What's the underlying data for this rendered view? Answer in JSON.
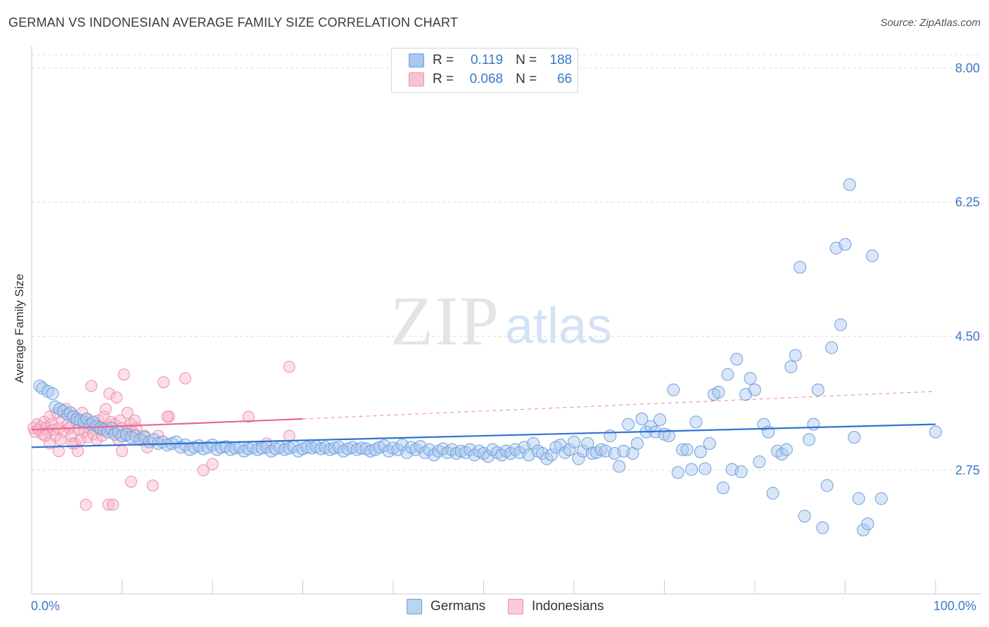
{
  "title": "GERMAN VS INDONESIAN AVERAGE FAMILY SIZE CORRELATION CHART",
  "source": "Source: ZipAtlas.com",
  "watermark": {
    "zip": "ZIP",
    "atlas": "atlas"
  },
  "legend": {
    "r_label": "R =",
    "n_label": "N =",
    "germans": {
      "r": "0.119",
      "n": "188"
    },
    "indonesians": {
      "r": "0.068",
      "n": "66"
    }
  },
  "bottom_legend": {
    "germans": "Germans",
    "indonesians": "Indonesians"
  },
  "colors": {
    "germans_fill": "#a9c8f0",
    "germans_stroke": "#6f9fdc",
    "germans_line": "#2e72d2",
    "indonesians_fill": "#f7b8cb",
    "indonesians_stroke": "#ec8fab",
    "indonesians_line": "#e8688f",
    "grid": "#dcdcdc",
    "axis_text": "#3b78c8"
  },
  "chart_data": {
    "type": "scatter",
    "title": "GERMAN VS INDONESIAN AVERAGE FAMILY SIZE CORRELATION CHART",
    "xlabel": "",
    "ylabel": "Average Family Size",
    "xlim": [
      0,
      100
    ],
    "ylim": [
      1.0,
      8.3
    ],
    "x_tick_labels": [
      "0.0%",
      "100.0%"
    ],
    "y_ticks": [
      2.75,
      4.5,
      6.25,
      8.0
    ],
    "y_tick_labels": [
      "2.75",
      "4.50",
      "6.25",
      "8.00"
    ],
    "grid": true,
    "legend_position": "top-center",
    "series": [
      {
        "name": "Germans",
        "r": 0.119,
        "n": 188,
        "trend": {
          "x0": 0,
          "y0": 3.05,
          "x1": 100,
          "y1": 3.35
        },
        "points": [
          [
            0.9,
            3.85
          ],
          [
            1.2,
            3.82
          ],
          [
            1.8,
            3.78
          ],
          [
            2.3,
            3.75
          ],
          [
            2.6,
            3.58
          ],
          [
            3.1,
            3.55
          ],
          [
            3.5,
            3.52
          ],
          [
            4.0,
            3.48
          ],
          [
            4.3,
            3.5
          ],
          [
            4.6,
            3.45
          ],
          [
            5.0,
            3.42
          ],
          [
            5.4,
            3.4
          ],
          [
            5.8,
            3.38
          ],
          [
            6.1,
            3.42
          ],
          [
            6.5,
            3.35
          ],
          [
            6.8,
            3.38
          ],
          [
            7.2,
            3.32
          ],
          [
            7.6,
            3.3
          ],
          [
            8.0,
            3.28
          ],
          [
            8.4,
            3.25
          ],
          [
            8.8,
            3.3
          ],
          [
            9.2,
            3.22
          ],
          [
            9.6,
            3.25
          ],
          [
            10.0,
            3.2
          ],
          [
            10.5,
            3.22
          ],
          [
            11.0,
            3.18
          ],
          [
            11.5,
            3.2
          ],
          [
            12.0,
            3.15
          ],
          [
            12.5,
            3.18
          ],
          [
            13.0,
            3.12
          ],
          [
            13.5,
            3.15
          ],
          [
            14.0,
            3.1
          ],
          [
            14.5,
            3.12
          ],
          [
            15.0,
            3.08
          ],
          [
            15.5,
            3.1
          ],
          [
            16.0,
            3.12
          ],
          [
            16.5,
            3.05
          ],
          [
            17.0,
            3.08
          ],
          [
            17.5,
            3.02
          ],
          [
            18.0,
            3.05
          ],
          [
            18.5,
            3.07
          ],
          [
            19.0,
            3.03
          ],
          [
            19.5,
            3.05
          ],
          [
            20.0,
            3.08
          ],
          [
            20.5,
            3.02
          ],
          [
            21.0,
            3.05
          ],
          [
            21.5,
            3.06
          ],
          [
            22.0,
            3.02
          ],
          [
            22.5,
            3.04
          ],
          [
            23.0,
            3.05
          ],
          [
            23.5,
            3.0
          ],
          [
            24.0,
            3.03
          ],
          [
            24.5,
            3.05
          ],
          [
            25.0,
            3.02
          ],
          [
            25.5,
            3.04
          ],
          [
            26.0,
            3.05
          ],
          [
            26.5,
            3.0
          ],
          [
            27.0,
            3.03
          ],
          [
            27.5,
            3.05
          ],
          [
            28.0,
            3.02
          ],
          [
            28.5,
            3.04
          ],
          [
            29.0,
            3.06
          ],
          [
            29.5,
            3.0
          ],
          [
            30.0,
            3.03
          ],
          [
            30.5,
            3.05
          ],
          [
            31.0,
            3.04
          ],
          [
            31.5,
            3.06
          ],
          [
            32.0,
            3.03
          ],
          [
            32.5,
            3.05
          ],
          [
            33.0,
            3.02
          ],
          [
            33.5,
            3.04
          ],
          [
            34.0,
            3.05
          ],
          [
            34.5,
            3.0
          ],
          [
            35.0,
            3.03
          ],
          [
            35.5,
            3.05
          ],
          [
            36.0,
            3.02
          ],
          [
            36.5,
            3.04
          ],
          [
            37.0,
            3.03
          ],
          [
            37.5,
            3.0
          ],
          [
            38.0,
            3.02
          ],
          [
            38.5,
            3.05
          ],
          [
            39.0,
            3.07
          ],
          [
            39.5,
            3.0
          ],
          [
            40.0,
            3.04
          ],
          [
            40.5,
            3.02
          ],
          [
            41.0,
            3.08
          ],
          [
            41.5,
            2.98
          ],
          [
            42.0,
            3.05
          ],
          [
            42.5,
            3.02
          ],
          [
            43.0,
            3.06
          ],
          [
            43.5,
            2.98
          ],
          [
            44.0,
            3.02
          ],
          [
            44.5,
            2.95
          ],
          [
            45.0,
            3.0
          ],
          [
            45.5,
            3.03
          ],
          [
            46.0,
            2.98
          ],
          [
            46.5,
            3.02
          ],
          [
            47.0,
            2.97
          ],
          [
            47.5,
            3.0
          ],
          [
            48.0,
            2.98
          ],
          [
            48.5,
            3.02
          ],
          [
            49.0,
            2.95
          ],
          [
            49.5,
            3.0
          ],
          [
            50.0,
            2.97
          ],
          [
            50.5,
            2.93
          ],
          [
            51.0,
            3.02
          ],
          [
            51.5,
            2.98
          ],
          [
            52.0,
            2.95
          ],
          [
            52.5,
            3.0
          ],
          [
            53.0,
            2.97
          ],
          [
            53.5,
            3.02
          ],
          [
            54.0,
            2.98
          ],
          [
            54.5,
            3.05
          ],
          [
            55.0,
            2.95
          ],
          [
            55.5,
            3.1
          ],
          [
            56.0,
            3.0
          ],
          [
            56.5,
            2.97
          ],
          [
            57.0,
            2.9
          ],
          [
            57.5,
            2.95
          ],
          [
            58.0,
            3.05
          ],
          [
            58.5,
            3.08
          ],
          [
            59.0,
            2.98
          ],
          [
            59.5,
            3.02
          ],
          [
            60.0,
            3.12
          ],
          [
            60.5,
            2.9
          ],
          [
            61.0,
            3.0
          ],
          [
            61.5,
            3.1
          ],
          [
            62.0,
            2.97
          ],
          [
            62.5,
            2.98
          ],
          [
            63.0,
            3.02
          ],
          [
            63.5,
            3.0
          ],
          [
            64.0,
            3.2
          ],
          [
            64.5,
            2.97
          ],
          [
            65.0,
            2.8
          ],
          [
            65.5,
            3.0
          ],
          [
            66.0,
            3.35
          ],
          [
            66.5,
            2.97
          ],
          [
            67.0,
            3.1
          ],
          [
            67.5,
            3.42
          ],
          [
            68.0,
            3.25
          ],
          [
            68.5,
            3.32
          ],
          [
            69.0,
            3.25
          ],
          [
            69.5,
            3.41
          ],
          [
            70.0,
            3.22
          ],
          [
            70.5,
            3.2
          ],
          [
            71.0,
            3.8
          ],
          [
            71.5,
            2.72
          ],
          [
            72.0,
            3.02
          ],
          [
            72.5,
            3.02
          ],
          [
            73.0,
            2.76
          ],
          [
            73.5,
            3.38
          ],
          [
            74.0,
            2.99
          ],
          [
            74.5,
            2.77
          ],
          [
            75.0,
            3.1
          ],
          [
            75.5,
            3.74
          ],
          [
            76.0,
            3.77
          ],
          [
            76.5,
            2.52
          ],
          [
            77.0,
            4.0
          ],
          [
            77.5,
            2.76
          ],
          [
            78.0,
            4.2
          ],
          [
            78.5,
            2.73
          ],
          [
            79.0,
            3.74
          ],
          [
            79.5,
            3.95
          ],
          [
            80.0,
            3.8
          ],
          [
            80.5,
            2.86
          ],
          [
            81.0,
            3.35
          ],
          [
            81.5,
            3.25
          ],
          [
            82.0,
            2.45
          ],
          [
            82.5,
            3.0
          ],
          [
            83.0,
            2.96
          ],
          [
            83.5,
            3.02
          ],
          [
            84.0,
            4.1
          ],
          [
            84.5,
            4.25
          ],
          [
            85.0,
            5.4
          ],
          [
            85.5,
            2.15
          ],
          [
            86.0,
            3.15
          ],
          [
            86.5,
            3.35
          ],
          [
            87.0,
            3.8
          ],
          [
            87.5,
            2.0
          ],
          [
            88.0,
            2.55
          ],
          [
            88.5,
            4.35
          ],
          [
            89.0,
            5.65
          ],
          [
            89.5,
            4.65
          ],
          [
            90.0,
            5.7
          ],
          [
            90.5,
            6.48
          ],
          [
            91.0,
            3.18
          ],
          [
            91.5,
            2.38
          ],
          [
            92.0,
            1.97
          ],
          [
            92.5,
            2.05
          ],
          [
            93.0,
            5.55
          ],
          [
            94.0,
            2.38
          ],
          [
            100.0,
            3.25
          ]
        ]
      },
      {
        "name": "Indonesians",
        "r": 0.068,
        "n": 66,
        "trend": {
          "x0": 0,
          "y0": 3.28,
          "x1": 30,
          "y1": 3.42
        },
        "trend_ext": {
          "x0": 30,
          "y0": 3.42,
          "x1": 100,
          "y1": 3.78
        },
        "points": [
          [
            0.2,
            3.3
          ],
          [
            0.4,
            3.25
          ],
          [
            0.6,
            3.35
          ],
          [
            0.8,
            3.28
          ],
          [
            1.0,
            3.32
          ],
          [
            1.2,
            3.22
          ],
          [
            1.4,
            3.38
          ],
          [
            1.6,
            3.3
          ],
          [
            1.8,
            3.25
          ],
          [
            2.0,
            3.45
          ],
          [
            2.2,
            3.35
          ],
          [
            2.4,
            3.28
          ],
          [
            2.6,
            3.2
          ],
          [
            2.8,
            3.5
          ],
          [
            3.0,
            3.3
          ],
          [
            3.2,
            3.15
          ],
          [
            3.4,
            3.4
          ],
          [
            3.6,
            3.25
          ],
          [
            3.8,
            3.55
          ],
          [
            4.0,
            3.35
          ],
          [
            4.2,
            3.3
          ],
          [
            4.4,
            3.2
          ],
          [
            4.6,
            3.45
          ],
          [
            4.8,
            3.1
          ],
          [
            5.0,
            3.38
          ],
          [
            5.2,
            3.28
          ],
          [
            5.4,
            3.15
          ],
          [
            5.6,
            3.5
          ],
          [
            5.8,
            3.25
          ],
          [
            6.0,
            3.42
          ],
          [
            6.2,
            3.18
          ],
          [
            6.4,
            3.3
          ],
          [
            6.6,
            3.85
          ],
          [
            6.8,
            3.22
          ],
          [
            7.0,
            3.35
          ],
          [
            7.2,
            3.15
          ],
          [
            7.4,
            3.4
          ],
          [
            7.6,
            3.28
          ],
          [
            7.8,
            3.2
          ],
          [
            8.0,
            3.45
          ],
          [
            8.2,
            3.55
          ],
          [
            8.4,
            3.3
          ],
          [
            8.6,
            3.75
          ],
          [
            8.8,
            3.38
          ],
          [
            9.0,
            3.25
          ],
          [
            9.2,
            3.35
          ],
          [
            9.4,
            3.7
          ],
          [
            9.6,
            3.15
          ],
          [
            9.8,
            3.4
          ],
          [
            10.0,
            3.3
          ],
          [
            10.2,
            4.0
          ],
          [
            10.4,
            3.2
          ],
          [
            10.6,
            3.5
          ],
          [
            10.8,
            3.28
          ],
          [
            11.0,
            3.35
          ],
          [
            11.2,
            3.25
          ],
          [
            11.4,
            3.4
          ],
          [
            11.6,
            3.3
          ],
          [
            12.2,
            3.15
          ],
          [
            12.8,
            3.05
          ],
          [
            13.4,
            2.55
          ],
          [
            14.0,
            3.2
          ],
          [
            14.6,
            3.9
          ],
          [
            15.2,
            3.45
          ],
          [
            24.0,
            3.45
          ],
          [
            28.5,
            3.2
          ]
        ],
        "extra_points": [
          [
            4.5,
            3.1
          ],
          [
            5.1,
            3.0
          ],
          [
            6.0,
            2.3
          ],
          [
            8.5,
            2.3
          ],
          [
            9.0,
            2.3
          ],
          [
            10.0,
            3.0
          ],
          [
            11.0,
            2.6
          ],
          [
            12.5,
            3.2
          ],
          [
            15.0,
            3.45
          ],
          [
            17.0,
            3.95
          ],
          [
            19.0,
            2.75
          ],
          [
            20.0,
            2.83
          ],
          [
            26.0,
            3.1
          ],
          [
            28.5,
            4.1
          ],
          [
            3.0,
            3.0
          ],
          [
            2.0,
            3.1
          ],
          [
            1.5,
            3.2
          ]
        ]
      }
    ]
  }
}
